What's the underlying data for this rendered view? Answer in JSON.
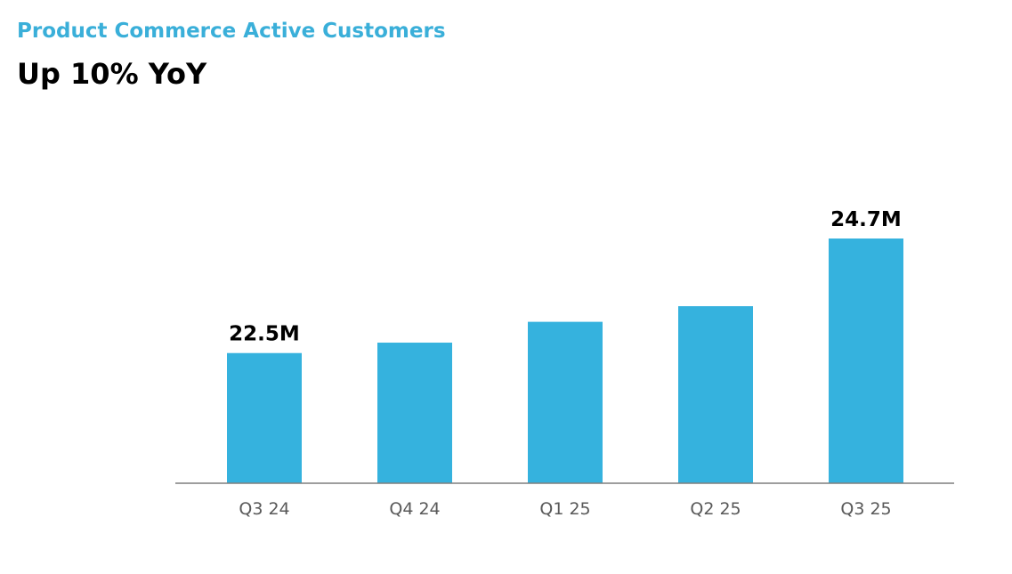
{
  "header": {
    "subtitle": "Product Commerce Active Customers",
    "title": "Up 10% YoY"
  },
  "colors": {
    "bar": "#35b2de",
    "subtitle": "#3aafd9",
    "axis": "#7f7f7f",
    "tick_text": "#595959"
  },
  "chart_data": {
    "type": "bar",
    "title": "Product Commerce Active Customers",
    "subtitle": "Up 10% YoY",
    "categories": [
      "Q3 24",
      "Q4 24",
      "Q1 25",
      "Q2 25",
      "Q3 25"
    ],
    "values": [
      22.5,
      22.7,
      23.1,
      23.4,
      24.7
    ],
    "unit": "M",
    "data_labels": [
      "22.5M",
      null,
      null,
      null,
      "24.7M"
    ],
    "xlabel": "",
    "ylabel": "",
    "ylim": [
      20.0,
      25.0
    ],
    "grid": false,
    "legend": "none"
  }
}
